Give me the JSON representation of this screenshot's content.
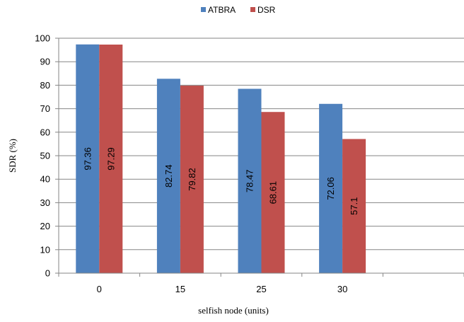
{
  "chart_data": {
    "type": "bar",
    "title": "",
    "xlabel": "selfish node (units)",
    "ylabel": "SDR (%)",
    "ylim": [
      0,
      100
    ],
    "yticks": [
      0,
      10,
      20,
      30,
      40,
      50,
      60,
      70,
      80,
      90,
      100
    ],
    "categories": [
      "0",
      "15",
      "25",
      "30",
      ""
    ],
    "series": [
      {
        "name": "ATBRA",
        "color": "#4F81BD",
        "values": [
          97.36,
          82.74,
          78.47,
          72.06,
          null
        ],
        "labels": [
          "97.36",
          "82.74",
          "78.47",
          "72.06",
          ""
        ]
      },
      {
        "name": "DSR",
        "color": "#C0504D",
        "values": [
          97.29,
          79.82,
          68.61,
          57.1,
          null
        ],
        "labels": [
          "97.29",
          "79.82",
          "68.61",
          "57.1",
          ""
        ]
      }
    ],
    "grid": true,
    "legend": "top"
  }
}
